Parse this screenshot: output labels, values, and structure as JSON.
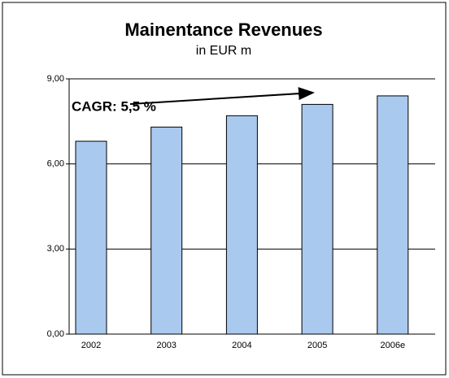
{
  "chart_data": {
    "type": "bar",
    "title": "Mainentance Revenues",
    "subtitle": "in EUR m",
    "annotation": "CAGR: 5,5 %",
    "categories": [
      "2002",
      "2003",
      "2004",
      "2005",
      "2006e"
    ],
    "values": [
      6.8,
      7.3,
      7.7,
      8.1,
      8.4
    ],
    "color": "#a9c9ef",
    "ylim": [
      0,
      9
    ],
    "yticks": [
      {
        "value": 0,
        "label": "0,00"
      },
      {
        "value": 3,
        "label": "3,00"
      },
      {
        "value": 6,
        "label": "6,00"
      },
      {
        "value": 9,
        "label": "9,00"
      }
    ],
    "grid": true
  }
}
